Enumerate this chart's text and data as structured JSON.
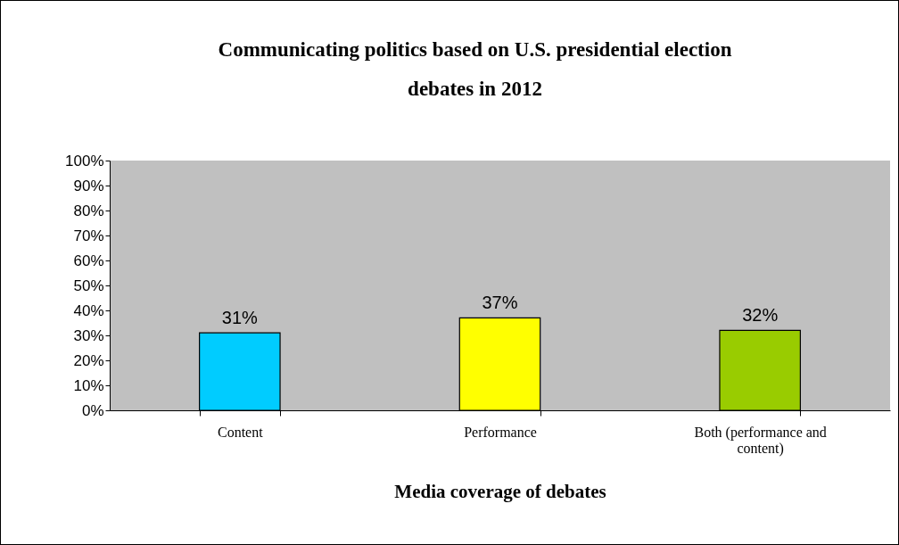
{
  "chart_data": {
    "type": "bar",
    "title": "Communicating politics based on U.S. presidential election debates in 2012",
    "xlabel": "Media coverage of debates",
    "categories": [
      "Content",
      "Performance",
      "Both (performance and content)"
    ],
    "values": [
      31,
      37,
      32
    ],
    "colors": [
      "#00ccff",
      "#ffff00",
      "#99cc00"
    ],
    "value_labels": [
      "31%",
      "37%",
      "32%"
    ],
    "ylim": [
      0,
      100
    ],
    "yticks": [
      {
        "value": 0,
        "label": "0%"
      },
      {
        "value": 10,
        "label": "10%"
      },
      {
        "value": 20,
        "label": "20%"
      },
      {
        "value": 30,
        "label": "30%"
      },
      {
        "value": 40,
        "label": "40%"
      },
      {
        "value": 50,
        "label": "50%"
      },
      {
        "value": 60,
        "label": "60%"
      },
      {
        "value": 70,
        "label": "70%"
      },
      {
        "value": 80,
        "label": "80%"
      },
      {
        "value": 90,
        "label": "90%"
      },
      {
        "value": 100,
        "label": "100%"
      }
    ],
    "grid": false
  }
}
